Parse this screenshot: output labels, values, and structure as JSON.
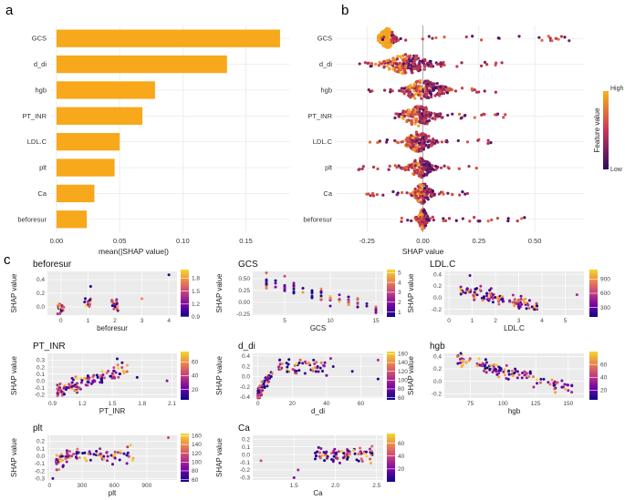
{
  "panel_labels": [
    "a",
    "b",
    "c"
  ],
  "palette": {
    "bar": "#f7a81b",
    "grid": "#e8e8e8",
    "low": "#2a0d5e",
    "mid": "#c8365a",
    "high": "#f9b21c",
    "panel_bg": "#ebebeb"
  },
  "chart_data": [
    {
      "id": "a",
      "type": "bar",
      "orientation": "horizontal",
      "categories": [
        "GCS",
        "d_di",
        "hgb",
        "PT_INR",
        "LDL.C",
        "plt",
        "Ca",
        "beforesur"
      ],
      "values": [
        0.177,
        0.135,
        0.078,
        0.068,
        0.05,
        0.046,
        0.03,
        0.024
      ],
      "xlabel": "mean(|SHAP value|)",
      "xlim": [
        -0.005,
        0.185
      ],
      "xticks": [
        0.0,
        0.05,
        0.1,
        0.15
      ],
      "xtick_labels": [
        "0.00",
        "0.05",
        "0.10",
        "0.15"
      ]
    },
    {
      "id": "b",
      "type": "scatter",
      "subtype": "beeswarm",
      "features": [
        "GCS",
        "d_di",
        "hgb",
        "PT_INR",
        "LDL.C",
        "plt",
        "Ca",
        "beforesur"
      ],
      "xlabel": "SHAP value",
      "xlim": [
        -0.39,
        0.72
      ],
      "xticks": [
        -0.25,
        0.0,
        0.25,
        0.5
      ],
      "xtick_labels": [
        "-0.25",
        "0.00",
        "0.25",
        "0.50"
      ],
      "spread": [
        {
          "lo": -0.2,
          "hi": 0.66,
          "center": -0.16,
          "width": 0.035
        },
        {
          "lo": -0.3,
          "hi": 0.36,
          "center": -0.07,
          "width": 0.1
        },
        {
          "lo": -0.27,
          "hi": 0.35,
          "center": 0.0,
          "width": 0.1
        },
        {
          "lo": -0.18,
          "hi": 0.38,
          "center": -0.02,
          "width": 0.08
        },
        {
          "lo": -0.28,
          "hi": 0.32,
          "center": -0.02,
          "width": 0.06
        },
        {
          "lo": -0.3,
          "hi": 0.26,
          "center": -0.01,
          "width": 0.05
        },
        {
          "lo": -0.28,
          "hi": 0.2,
          "center": 0.0,
          "width": 0.04
        },
        {
          "lo": -0.16,
          "hi": 0.47,
          "center": 0.0,
          "width": 0.02
        }
      ],
      "legend": {
        "title": "Feature value",
        "high": "High",
        "low": "Low"
      }
    },
    {
      "id": "c1",
      "type": "scatter",
      "title": "beforesur",
      "xlabel": "beforesur",
      "ylabel": "SHAP value",
      "xlim": [
        -0.5,
        4.3
      ],
      "ylim": [
        -0.12,
        0.52
      ],
      "xticks": [
        0,
        1,
        2,
        3,
        4
      ],
      "xtick_labels": [
        "0",
        "1",
        "2",
        "3",
        "4"
      ],
      "yticks": [
        0.0,
        0.2,
        0.4
      ],
      "ytick_labels": [
        "0.0",
        "0.2",
        "0.4"
      ],
      "colorbar": {
        "min": 0.9,
        "max": 2.0,
        "ticks": [
          0.9,
          1.2,
          1.5,
          1.8
        ],
        "labels": [
          "0.9",
          "1.2",
          "1.5",
          "1.8"
        ]
      }
    },
    {
      "id": "c2",
      "type": "scatter",
      "title": "GCS",
      "xlabel": "GCS",
      "ylabel": "SHAP value",
      "xlim": [
        1.5,
        15.8
      ],
      "ylim": [
        -0.27,
        0.65
      ],
      "xticks": [
        5,
        10,
        15
      ],
      "xtick_labels": [
        "5",
        "10",
        "15"
      ],
      "yticks": [
        -0.25,
        0.0,
        0.25,
        0.5
      ],
      "ytick_labels": [
        "-0.25",
        "0.00",
        "0.25",
        "0.50"
      ],
      "colorbar": {
        "min": 0.5,
        "max": 5.3,
        "ticks": [
          1,
          2,
          3,
          4,
          5
        ],
        "labels": [
          "1",
          "2",
          "3",
          "4",
          "5"
        ]
      }
    },
    {
      "id": "c3",
      "type": "scatter",
      "title": "LDL.C",
      "xlabel": "LDL.C",
      "ylabel": "SHAP value",
      "xlim": [
        -0.2,
        5.8
      ],
      "ylim": [
        -0.3,
        0.45
      ],
      "xticks": [
        0,
        1,
        2,
        3,
        4,
        5
      ],
      "xtick_labels": [
        "0",
        "1",
        "2",
        "3",
        "4",
        "5"
      ],
      "yticks": [
        -0.2,
        0.0,
        0.2,
        0.4
      ],
      "ytick_labels": [
        "-0.2",
        "0.0",
        "0.2",
        "0.4"
      ],
      "colorbar": {
        "min": 100,
        "max": 1100,
        "ticks": [
          300,
          600,
          900
        ],
        "labels": [
          "300",
          "600",
          "900"
        ]
      }
    },
    {
      "id": "c4",
      "type": "scatter",
      "title": "PT_INR",
      "xlabel": "PT_INR",
      "ylabel": "SHAP value",
      "xlim": [
        0.85,
        2.15
      ],
      "ylim": [
        -0.25,
        0.4
      ],
      "xticks": [
        0.9,
        1.2,
        1.5,
        1.8,
        2.1
      ],
      "xtick_labels": [
        "0.9",
        "1.2",
        "1.5",
        "1.8",
        "2.1"
      ],
      "yticks": [
        -0.2,
        -0.1,
        0.0,
        0.1,
        0.2,
        0.3
      ],
      "ytick_labels": [
        "-0.2",
        "-0.1",
        "0.0",
        "0.1",
        "0.2",
        "0.3"
      ],
      "colorbar": {
        "min": 5,
        "max": 75,
        "ticks": [
          20,
          40,
          60
        ],
        "labels": [
          "20",
          "40",
          "60"
        ]
      }
    },
    {
      "id": "c5",
      "type": "scatter",
      "title": "d_di",
      "xlabel": "d_di",
      "ylabel": "SHAP value",
      "xlim": [
        -3,
        73
      ],
      "ylim": [
        -0.42,
        0.45
      ],
      "xticks": [
        0,
        20,
        40,
        60
      ],
      "xtick_labels": [
        "0",
        "20",
        "40",
        "60"
      ],
      "yticks": [
        -0.4,
        -0.2,
        0.0,
        0.2,
        0.4
      ],
      "ytick_labels": [
        "-0.4",
        "-0.2",
        "0.0",
        "0.2",
        "0.4"
      ],
      "colorbar": {
        "min": 55,
        "max": 165,
        "ticks": [
          60,
          80,
          100,
          120,
          140,
          160
        ],
        "labels": [
          "60",
          "80",
          "100",
          "120",
          "140",
          "160"
        ]
      }
    },
    {
      "id": "c6",
      "type": "scatter",
      "title": "hgb",
      "xlabel": "hgb",
      "ylabel": "SHAP value",
      "xlim": [
        55,
        162
      ],
      "ylim": [
        -0.27,
        0.45
      ],
      "xticks": [
        75,
        100,
        125,
        150
      ],
      "xtick_labels": [
        "75",
        "100",
        "125",
        "150"
      ],
      "yticks": [
        -0.2,
        0.0,
        0.2,
        0.4
      ],
      "ytick_labels": [
        "-0.2",
        "0.0",
        "0.2",
        "0.4"
      ],
      "colorbar": {
        "min": 5,
        "max": 80,
        "ticks": [
          20,
          40,
          60
        ],
        "labels": [
          "20",
          "40",
          "60"
        ]
      }
    },
    {
      "id": "c7",
      "type": "scatter",
      "title": "plt",
      "xlabel": "plt",
      "ylabel": "SHAP value",
      "xlim": [
        -20,
        1180
      ],
      "ylim": [
        -0.32,
        0.28
      ],
      "xticks": [
        0,
        300,
        600,
        900
      ],
      "xtick_labels": [
        "0",
        "300",
        "600",
        "900"
      ],
      "yticks": [
        -0.3,
        -0.2,
        -0.1,
        0.0,
        0.1,
        0.2
      ],
      "ytick_labels": [
        "-0.3",
        "-0.2",
        "-0.1",
        "0.0",
        "0.1",
        "0.2"
      ],
      "colorbar": {
        "min": 55,
        "max": 165,
        "ticks": [
          60,
          80,
          100,
          120,
          140,
          160
        ],
        "labels": [
          "60",
          "80",
          "100",
          "120",
          "140",
          "160"
        ]
      }
    },
    {
      "id": "c8",
      "type": "scatter",
      "title": "Ca",
      "xlabel": "Ca",
      "ylabel": "SHAP value",
      "xlim": [
        1.0,
        2.58
      ],
      "ylim": [
        -0.33,
        0.25
      ],
      "xticks": [
        1.5,
        2.0,
        2.5
      ],
      "xtick_labels": [
        "1.5",
        "2.0",
        "2.5"
      ],
      "yticks": [
        -0.3,
        -0.2,
        -0.1,
        0.0,
        0.1,
        0.2
      ],
      "ytick_labels": [
        "-0.3",
        "-0.2",
        "-0.1",
        "0.0",
        "0.1",
        "0.2"
      ],
      "colorbar": {
        "min": 0,
        "max": 75,
        "ticks": [
          20,
          40,
          60
        ],
        "labels": [
          "20",
          "40",
          "60"
        ]
      }
    }
  ]
}
